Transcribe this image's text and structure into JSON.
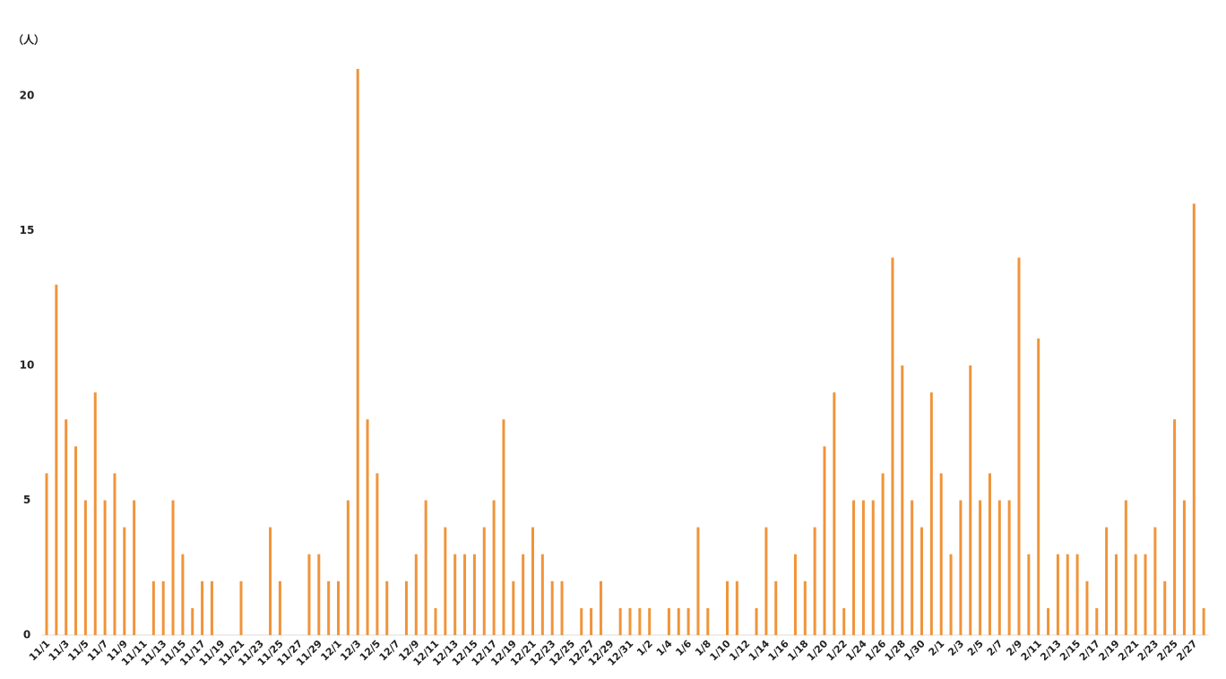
{
  "chart_data": {
    "type": "bar",
    "y_label": "（人）",
    "color": "#f0943a",
    "categories": [
      "11/1",
      null,
      "11/3",
      null,
      "11/5",
      null,
      "11/7",
      null,
      "11/9",
      null,
      "11/11",
      null,
      "11/13",
      null,
      "11/15",
      null,
      "11/17",
      null,
      "11/19",
      null,
      "11/21",
      null,
      "11/23",
      null,
      "11/25",
      null,
      "11/27",
      null,
      "11/29",
      null,
      "12/1",
      null,
      "12/3",
      null,
      "12/5",
      null,
      "12/7",
      null,
      "12/9",
      null,
      "12/11",
      null,
      "12/13",
      null,
      "12/15",
      null,
      "12/17",
      null,
      "12/19",
      null,
      "12/21",
      null,
      "12/23",
      null,
      "12/25",
      null,
      "12/27",
      null,
      "12/29",
      null,
      "12/31",
      null,
      "1/2",
      null,
      "1/4",
      null,
      "1/6",
      null,
      "1/8",
      null,
      "1/10",
      null,
      "1/12",
      null,
      "1/14",
      null,
      "1/16",
      null,
      "1/18",
      null,
      "1/20",
      null,
      "1/22",
      null,
      "1/24",
      null,
      "1/26",
      null,
      "1/28",
      null,
      "1/30",
      null,
      "2/1",
      null,
      "2/3",
      null,
      "2/5",
      null,
      "2/7",
      null,
      "2/9",
      null,
      "2/11",
      null,
      "2/13",
      null,
      "2/15",
      null,
      "2/17",
      null,
      "2/19",
      null,
      "2/21",
      null,
      "2/23",
      null,
      "2/25",
      null,
      "2/27",
      null
    ],
    "values": [
      6,
      13,
      8,
      7,
      5,
      9,
      5,
      6,
      4,
      5,
      0,
      2,
      2,
      5,
      3,
      1,
      2,
      2,
      0,
      0,
      2,
      0,
      0,
      4,
      2,
      0,
      0,
      3,
      3,
      2,
      2,
      5,
      21,
      8,
      6,
      2,
      0,
      2,
      3,
      5,
      1,
      4,
      3,
      3,
      3,
      4,
      5,
      8,
      2,
      3,
      4,
      3,
      2,
      2,
      0,
      1,
      1,
      2,
      0,
      1,
      1,
      1,
      1,
      0,
      1,
      1,
      1,
      4,
      1,
      0,
      2,
      2,
      0,
      1,
      4,
      2,
      0,
      3,
      2,
      4,
      7,
      9,
      1,
      5,
      5,
      5,
      6,
      14,
      10,
      5,
      4,
      9,
      6,
      3,
      5,
      10,
      5,
      6,
      5,
      5,
      14,
      3,
      11,
      1,
      3,
      3,
      3,
      2,
      1,
      4,
      3,
      5,
      3,
      3,
      4,
      2,
      8,
      5,
      16,
      1
    ],
    "ylim": [
      0,
      22
    ],
    "yticks": [
      0,
      5,
      10,
      15,
      20
    ],
    "grid": false
  }
}
